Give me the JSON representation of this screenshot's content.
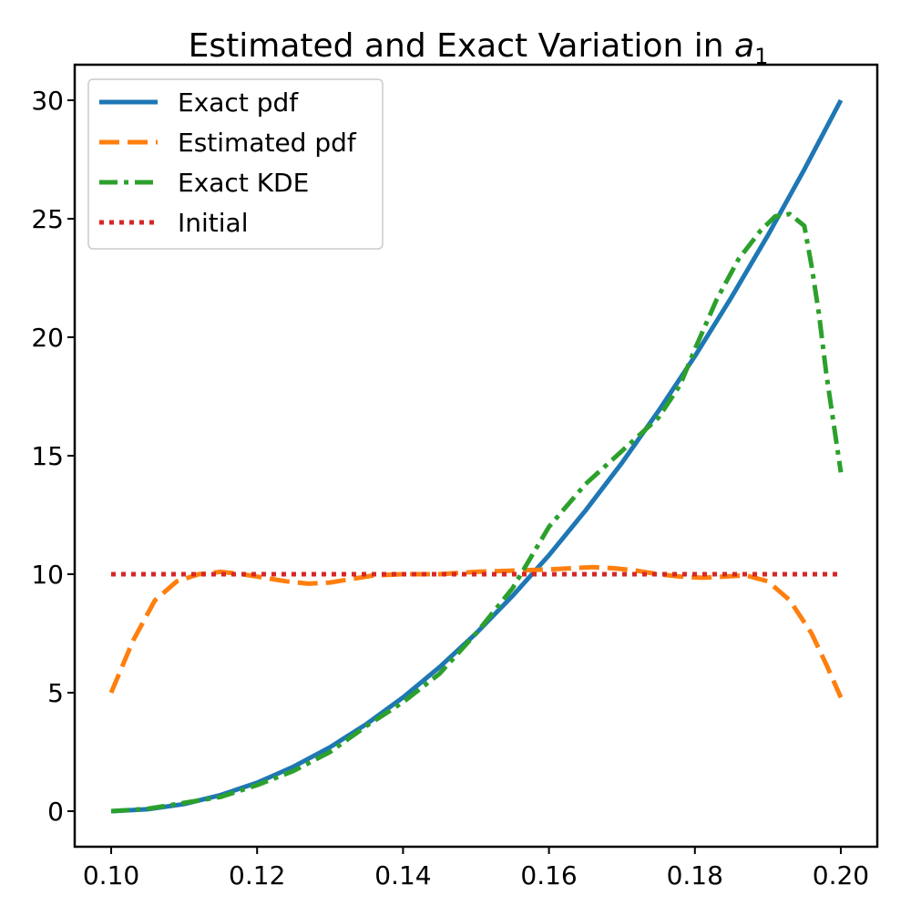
{
  "chart_data": {
    "type": "line",
    "title": "Estimated and Exact Variation in ",
    "title_math_symbol": "a",
    "title_math_subscript": "1",
    "xlabel": "",
    "ylabel": "",
    "xlim": [
      0.095,
      0.205
    ],
    "ylim": [
      -1.5,
      31.5
    ],
    "grid": false,
    "legend_position": "upper-left",
    "x_ticks": [
      0.1,
      0.12,
      0.14,
      0.16,
      0.18,
      0.2
    ],
    "x_tick_labels": [
      "0.10",
      "0.12",
      "0.14",
      "0.16",
      "0.18",
      "0.20"
    ],
    "y_ticks": [
      0,
      5,
      10,
      15,
      20,
      25,
      30
    ],
    "y_tick_labels": [
      "0",
      "5",
      "10",
      "15",
      "20",
      "25",
      "30"
    ],
    "series": [
      {
        "name": "Exact pdf",
        "color": "#1f77b4",
        "style": "solid",
        "x": [
          0.1,
          0.105,
          0.11,
          0.115,
          0.12,
          0.125,
          0.13,
          0.135,
          0.14,
          0.145,
          0.15,
          0.155,
          0.16,
          0.165,
          0.17,
          0.175,
          0.18,
          0.185,
          0.19,
          0.195,
          0.2
        ],
        "y": [
          0.0,
          0.08,
          0.3,
          0.68,
          1.2,
          1.88,
          2.7,
          3.68,
          4.8,
          6.08,
          7.5,
          9.08,
          10.8,
          12.68,
          14.7,
          16.88,
          19.2,
          21.68,
          24.3,
          27.08,
          30.0
        ]
      },
      {
        "name": "Estimated pdf",
        "color": "#ff7f0e",
        "style": "dashed",
        "x": [
          0.1,
          0.103,
          0.106,
          0.109,
          0.112,
          0.115,
          0.118,
          0.121,
          0.124,
          0.127,
          0.13,
          0.133,
          0.136,
          0.14,
          0.145,
          0.15,
          0.155,
          0.16,
          0.163,
          0.166,
          0.169,
          0.172,
          0.175,
          0.178,
          0.181,
          0.184,
          0.187,
          0.19,
          0.193,
          0.196,
          0.198,
          0.2
        ],
        "y": [
          5.0,
          7.2,
          8.9,
          9.7,
          10.0,
          10.1,
          10.0,
          9.85,
          9.7,
          9.6,
          9.65,
          9.8,
          9.95,
          10.0,
          10.0,
          10.1,
          10.15,
          10.2,
          10.25,
          10.3,
          10.25,
          10.15,
          10.0,
          9.9,
          9.85,
          9.9,
          9.95,
          9.7,
          8.9,
          7.5,
          6.2,
          4.8
        ]
      },
      {
        "name": "Exact KDE",
        "color": "#2ca02c",
        "style": "dashdot",
        "x": [
          0.1,
          0.105,
          0.11,
          0.115,
          0.12,
          0.125,
          0.13,
          0.135,
          0.14,
          0.145,
          0.15,
          0.155,
          0.16,
          0.165,
          0.17,
          0.175,
          0.178,
          0.18,
          0.183,
          0.186,
          0.189,
          0.191,
          0.193,
          0.195,
          0.196,
          0.197,
          0.198,
          0.199,
          0.2
        ],
        "y": [
          0.0,
          0.1,
          0.35,
          0.6,
          1.1,
          1.7,
          2.5,
          3.6,
          4.6,
          5.8,
          7.5,
          9.4,
          12.0,
          13.8,
          15.2,
          16.6,
          18.0,
          19.5,
          21.6,
          23.3,
          24.5,
          25.1,
          25.2,
          24.7,
          23.0,
          21.0,
          18.5,
          16.4,
          14.3
        ]
      },
      {
        "name": "Initial",
        "color": "#d62728",
        "style": "dotted",
        "x": [
          0.1,
          0.2
        ],
        "y": [
          10.0,
          10.0
        ]
      }
    ]
  }
}
